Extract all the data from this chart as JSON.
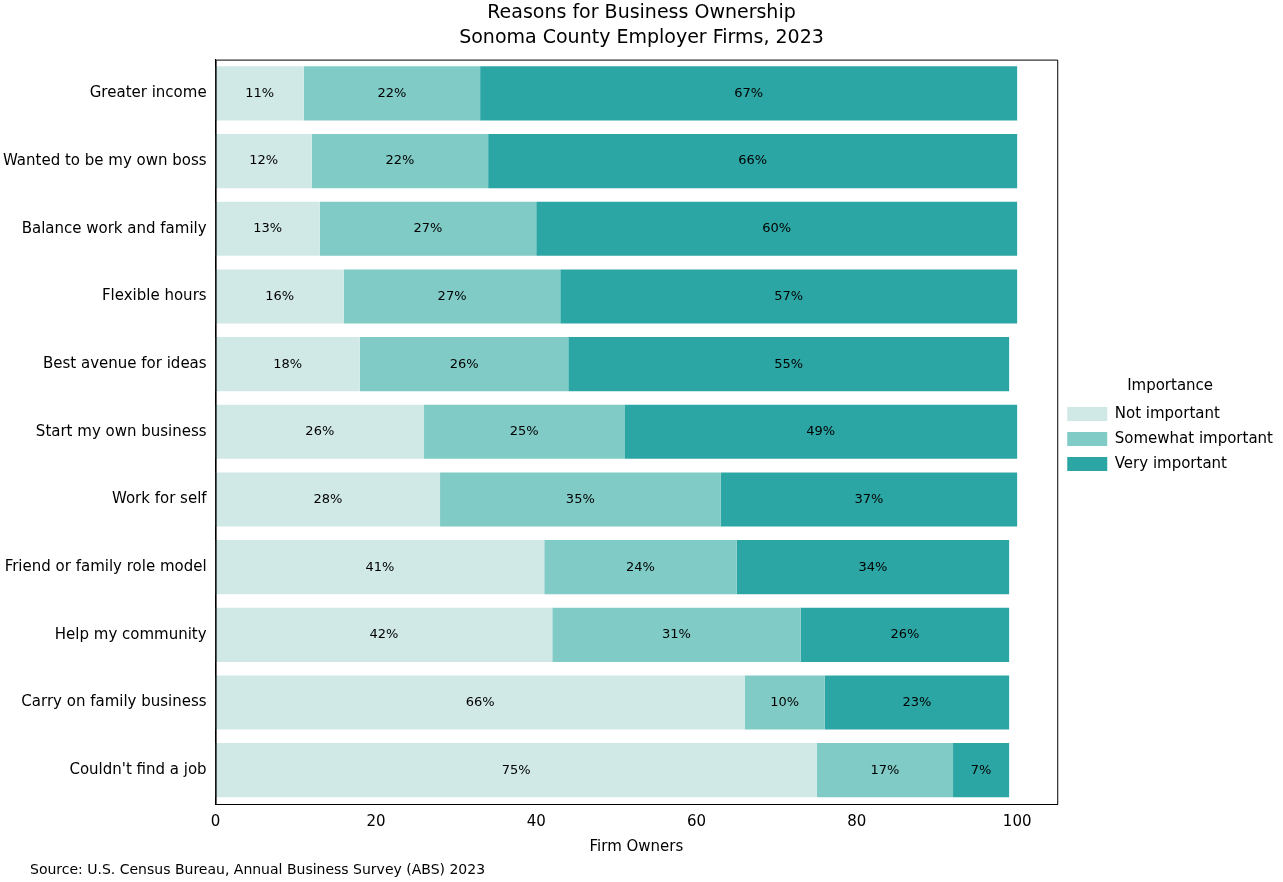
{
  "chart_data": {
    "type": "bar",
    "orientation": "horizontal",
    "stacked": true,
    "title": "Reasons for Business Ownership",
    "subtitle": "Sonoma County Employer Firms, 2023",
    "xlabel": "Firm Owners",
    "legend_title": "Importance",
    "legend": "right",
    "grid": false,
    "categories": [
      "Greater income",
      "Wanted to be my own boss",
      "Balance work and family",
      "Flexible hours",
      "Best avenue for ideas",
      "Start my own business",
      "Work for self",
      "Friend or family role model",
      "Help my community",
      "Carry on family business",
      "Couldn't find a job"
    ],
    "series": [
      {
        "name": "Not important",
        "color": "#d0e9e7",
        "values": [
          11,
          12,
          13,
          16,
          18,
          26,
          28,
          41,
          42,
          66,
          75
        ],
        "value_labels": [
          "11%",
          "12%",
          "13%",
          "16%",
          "18%",
          "26%",
          "28%",
          "41%",
          "42%",
          "66%",
          "75%"
        ]
      },
      {
        "name": "Somewhat important",
        "color": "#80cbc6",
        "values": [
          22,
          22,
          27,
          27,
          26,
          25,
          35,
          24,
          31,
          10,
          17
        ],
        "value_labels": [
          "22%",
          "22%",
          "27%",
          "27%",
          "26%",
          "25%",
          "35%",
          "24%",
          "31%",
          "10%",
          "17%"
        ]
      },
      {
        "name": "Very important",
        "color": "#2ca6a4",
        "values": [
          67,
          66,
          60,
          57,
          55,
          49,
          37,
          34,
          26,
          23,
          7
        ],
        "value_labels": [
          "67%",
          "66%",
          "60%",
          "57%",
          "55%",
          "49%",
          "37%",
          "34%",
          "26%",
          "23%",
          "7%"
        ]
      }
    ],
    "xlim": [
      0,
      105
    ],
    "xticks": [
      0,
      20,
      40,
      60,
      80,
      100
    ],
    "annotations": [
      "Source: U.S. Census Bureau, Annual Business Survey (ABS) 2023"
    ]
  }
}
